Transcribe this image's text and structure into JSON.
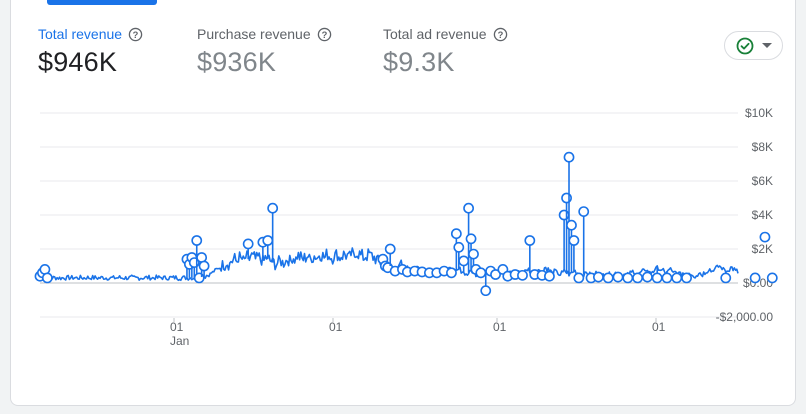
{
  "metrics": [
    {
      "label": "Total revenue",
      "value": "$946K",
      "active": true
    },
    {
      "label": "Purchase revenue",
      "value": "$936K",
      "active": false
    },
    {
      "label": "Total ad revenue",
      "value": "$9.3K",
      "active": false
    }
  ],
  "colors": {
    "accent": "#1a73e8",
    "status_ok": "#188038",
    "grid": "#e8eaed"
  },
  "status_icon": "check-circle-icon",
  "chart_data": {
    "type": "line",
    "y_ticks": [
      "$10K",
      "$8K",
      "$6K",
      "$4K",
      "$2K",
      "$0.00",
      "-$2,000.00"
    ],
    "x_ticks": [
      "01",
      "01",
      "01",
      "01"
    ],
    "x_sublabel": "Jan",
    "ylim": [
      -2000,
      10000
    ],
    "grid": true,
    "series": [
      {
        "values": [
          300,
          350,
          380,
          330,
          300,
          300,
          320,
          310,
          300,
          300,
          310,
          300,
          300,
          320,
          310,
          300,
          300,
          310,
          300,
          320,
          300,
          310,
          300,
          300,
          300,
          320,
          310,
          300,
          300,
          300,
          310,
          300,
          320,
          300,
          300,
          310,
          300,
          320,
          300,
          300,
          310,
          300,
          300,
          320,
          310,
          300,
          300,
          310,
          300,
          320,
          300,
          310,
          300,
          320,
          300,
          310,
          300,
          300,
          300,
          320,
          310,
          300,
          300,
          300,
          310,
          330,
          350,
          400,
          450,
          500,
          600,
          700,
          800,
          900,
          1000,
          1100,
          1200,
          1100,
          1300,
          1400,
          1300,
          1500,
          1400,
          1300,
          1500,
          1400,
          1600,
          1500,
          1400,
          1500,
          1400,
          1300,
          1500,
          1400,
          1300,
          1200,
          1100,
          1200,
          1300,
          1200,
          1300,
          1400,
          1300,
          1500,
          1400,
          1600,
          1500,
          1400,
          1500,
          1600,
          1400,
          1500,
          1600,
          1500,
          1700,
          1600,
          1500,
          1700,
          1600,
          1500,
          1600,
          1700,
          1500,
          1600,
          1700,
          1600,
          1500,
          1700,
          1600,
          1800,
          1700,
          1600,
          1500,
          1600,
          1700,
          1600,
          1500,
          1400,
          1300,
          1200,
          1100,
          1000,
          900,
          1000,
          900,
          800,
          900,
          1000,
          900,
          800,
          900,
          800,
          700,
          800,
          900,
          800,
          700,
          800,
          700,
          800,
          700,
          600,
          700,
          800,
          700,
          600,
          700,
          800,
          700,
          600,
          700,
          800,
          700,
          600,
          500,
          600,
          700,
          600,
          500,
          600,
          700,
          600,
          500,
          600,
          700,
          600,
          500,
          600,
          700,
          600,
          500,
          600,
          700,
          600,
          500,
          600,
          700,
          600,
          700,
          800,
          700,
          600,
          700,
          800,
          700,
          600,
          900,
          800,
          700,
          600,
          700,
          600,
          500,
          600,
          700,
          600,
          500,
          600,
          700,
          600,
          500,
          400,
          500,
          600,
          500,
          400,
          500,
          600,
          500,
          400,
          500,
          600,
          500,
          400,
          500,
          600,
          500,
          400,
          500,
          400,
          500,
          600,
          700,
          600,
          500,
          600,
          700,
          800,
          700,
          600,
          700,
          800,
          900,
          800,
          700,
          600,
          700,
          800,
          700,
          600,
          500,
          600,
          500,
          400,
          500,
          600,
          500,
          400,
          500,
          600,
          500,
          600,
          700,
          800,
          700,
          800,
          900,
          1000,
          900,
          800,
          700,
          800,
          900,
          800,
          700,
          600
        ]
      }
    ],
    "markers": [
      {
        "i": 0,
        "v": 400
      },
      {
        "i": 1,
        "v": 600
      },
      {
        "i": 2,
        "v": 800
      },
      {
        "i": 3,
        "v": 300
      },
      {
        "i": 60,
        "v": 1400
      },
      {
        "i": 61,
        "v": 1100
      },
      {
        "i": 62,
        "v": 1500
      },
      {
        "i": 63,
        "v": 1200
      },
      {
        "i": 64,
        "v": 2500
      },
      {
        "i": 65,
        "v": 300
      },
      {
        "i": 66,
        "v": 1500
      },
      {
        "i": 67,
        "v": 1000
      },
      {
        "i": 85,
        "v": 2300
      },
      {
        "i": 91,
        "v": 2400
      },
      {
        "i": 93,
        "v": 2500
      },
      {
        "i": 95,
        "v": 4400
      },
      {
        "i": 140,
        "v": 1400
      },
      {
        "i": 141,
        "v": 1000
      },
      {
        "i": 142,
        "v": 900
      },
      {
        "i": 143,
        "v": 2000
      },
      {
        "i": 145,
        "v": 700
      },
      {
        "i": 148,
        "v": 800
      },
      {
        "i": 150,
        "v": 650
      },
      {
        "i": 153,
        "v": 700
      },
      {
        "i": 156,
        "v": 650
      },
      {
        "i": 159,
        "v": 600
      },
      {
        "i": 162,
        "v": 600
      },
      {
        "i": 165,
        "v": 700
      },
      {
        "i": 168,
        "v": 600
      },
      {
        "i": 170,
        "v": 2900
      },
      {
        "i": 171,
        "v": 2100
      },
      {
        "i": 173,
        "v": 1300
      },
      {
        "i": 175,
        "v": 4400
      },
      {
        "i": 176,
        "v": 2600
      },
      {
        "i": 177,
        "v": 1700
      },
      {
        "i": 178,
        "v": 800
      },
      {
        "i": 180,
        "v": 600
      },
      {
        "i": 182,
        "v": -450
      },
      {
        "i": 184,
        "v": 700
      },
      {
        "i": 186,
        "v": 500
      },
      {
        "i": 189,
        "v": 800
      },
      {
        "i": 191,
        "v": 400
      },
      {
        "i": 194,
        "v": 500
      },
      {
        "i": 197,
        "v": 450
      },
      {
        "i": 200,
        "v": 2500
      },
      {
        "i": 202,
        "v": 500
      },
      {
        "i": 205,
        "v": 450
      },
      {
        "i": 208,
        "v": 400
      },
      {
        "i": 214,
        "v": 4000
      },
      {
        "i": 215,
        "v": 5000
      },
      {
        "i": 216,
        "v": 7400
      },
      {
        "i": 217,
        "v": 3400
      },
      {
        "i": 218,
        "v": 2500
      },
      {
        "i": 220,
        "v": 300
      },
      {
        "i": 222,
        "v": 4200
      },
      {
        "i": 225,
        "v": 300
      },
      {
        "i": 228,
        "v": 350
      },
      {
        "i": 232,
        "v": 300
      },
      {
        "i": 236,
        "v": 350
      },
      {
        "i": 240,
        "v": 300
      },
      {
        "i": 244,
        "v": 300
      },
      {
        "i": 248,
        "v": 350
      },
      {
        "i": 252,
        "v": 300
      },
      {
        "i": 256,
        "v": 300
      },
      {
        "i": 260,
        "v": 300
      },
      {
        "i": 264,
        "v": 300
      },
      {
        "i": 280,
        "v": 300
      },
      {
        "i": 292,
        "v": 300
      },
      {
        "i": 296,
        "v": 2700
      },
      {
        "i": 299,
        "v": 300
      }
    ]
  }
}
